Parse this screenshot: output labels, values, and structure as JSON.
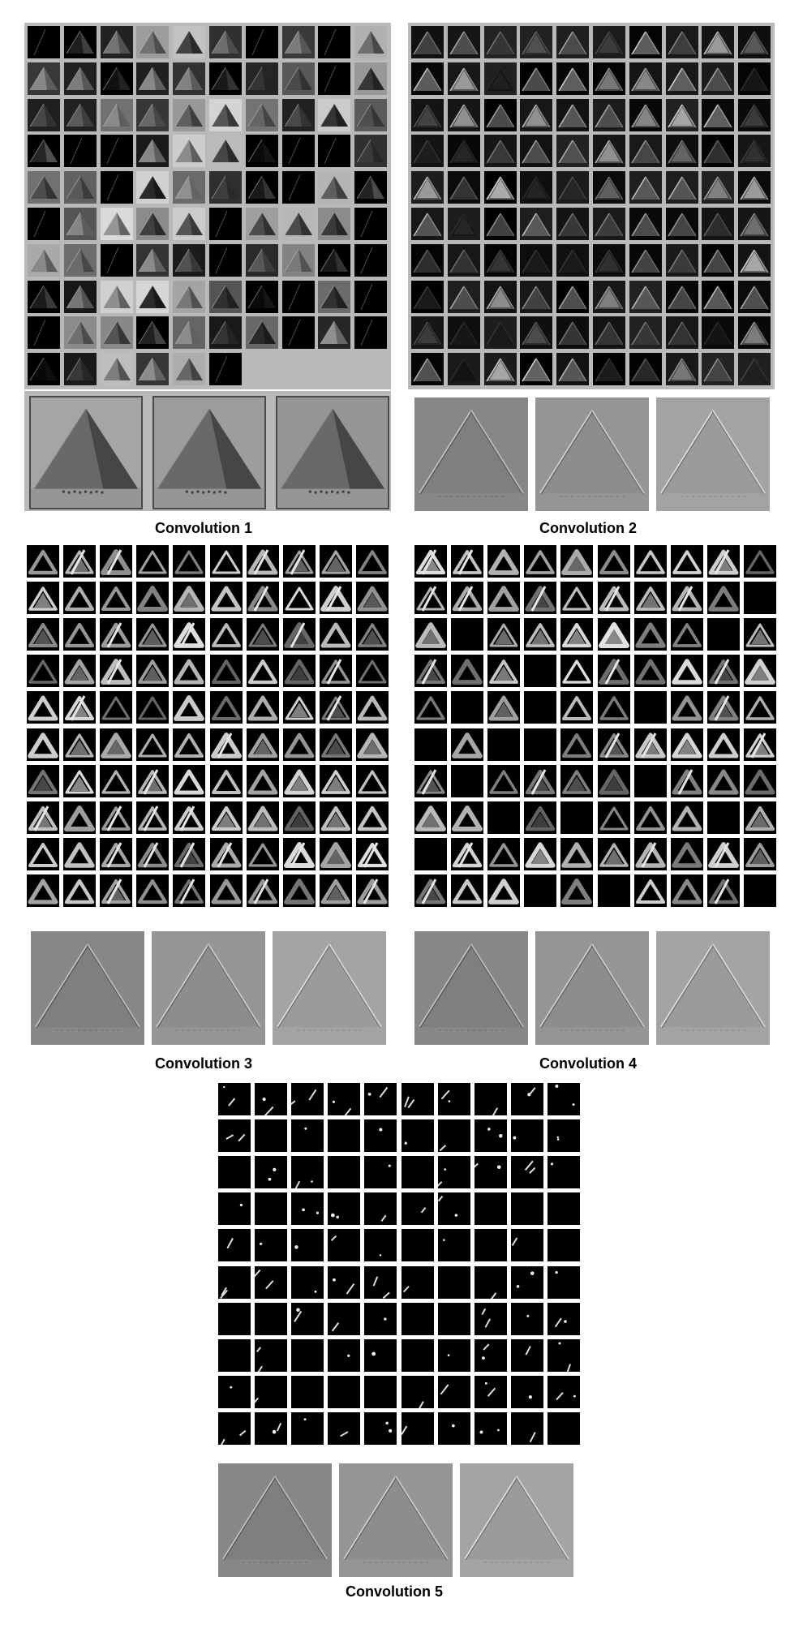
{
  "figure": {
    "captions": {
      "conv1": "Convolution 1",
      "conv2": "Convolution 2",
      "conv3": "Convolution 3",
      "conv4": "Convolution 4",
      "conv5": "Convolution 5"
    },
    "panels": [
      {
        "id": "conv1",
        "tiles": 96,
        "grid": "10x10",
        "style": "gray-frame",
        "reconstructions": 3
      },
      {
        "id": "conv2",
        "tiles": 100,
        "grid": "10x10",
        "style": "gray-frame",
        "reconstructions": 3
      },
      {
        "id": "conv3",
        "tiles": 100,
        "grid": "10x10",
        "style": "white-gap",
        "reconstructions": 3
      },
      {
        "id": "conv4",
        "tiles": 100,
        "grid": "10x10",
        "style": "white-gap",
        "reconstructions": 3
      },
      {
        "id": "conv5",
        "tiles": 100,
        "grid": "10x10",
        "style": "white-gap",
        "reconstructions": 3
      }
    ]
  }
}
